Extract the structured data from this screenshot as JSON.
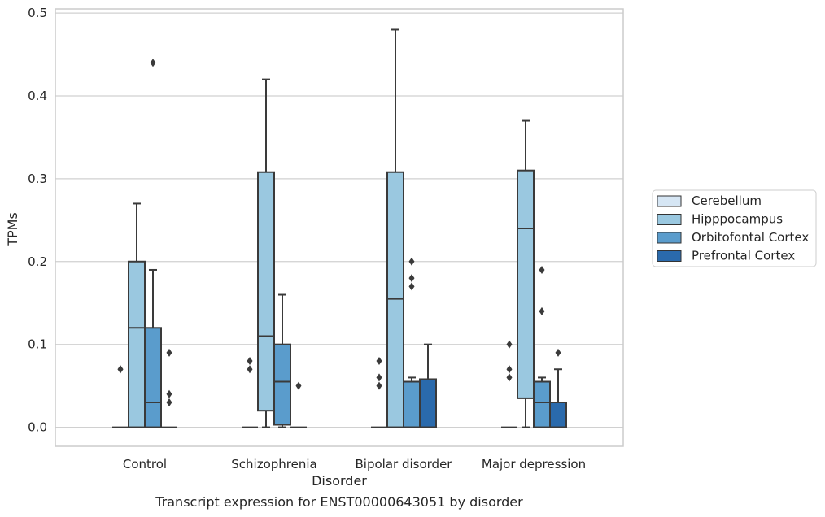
{
  "chart_data": {
    "type": "boxplot",
    "caption": "Transcript expression for ENST00000643051 by disorder",
    "xlabel": "Disorder",
    "ylabel": "TPMs",
    "ylim": [
      -0.023,
      0.505
    ],
    "yticks": [
      0.0,
      0.1,
      0.2,
      0.3,
      0.4,
      0.5
    ],
    "ytick_labels": [
      "0.0",
      "0.1",
      "0.2",
      "0.3",
      "0.4",
      "0.5"
    ],
    "grid": "horizontal",
    "legend_placement": "outside right",
    "categories": [
      "Control",
      "Schizophrenia",
      "Bipolar disorder",
      "Major depression"
    ],
    "series": [
      {
        "name": "Cerebellum",
        "color": "#d6e6f4",
        "boxes": [
          {
            "min": 0.0,
            "q1": 0.0,
            "median": 0.0,
            "q3": 0.0,
            "max": 0.0,
            "outliers": [
              0.07,
              0.07
            ]
          },
          {
            "min": 0.0,
            "q1": 0.0,
            "median": 0.0,
            "q3": 0.0,
            "max": 0.0,
            "outliers": [
              0.08,
              0.07
            ]
          },
          {
            "min": 0.0,
            "q1": 0.0,
            "median": 0.0,
            "q3": 0.0,
            "max": 0.0,
            "outliers": [
              0.08,
              0.06,
              0.05
            ]
          },
          {
            "min": 0.0,
            "q1": 0.0,
            "median": 0.0,
            "q3": 0.0,
            "max": 0.0,
            "outliers": [
              0.1,
              0.07,
              0.06
            ]
          }
        ]
      },
      {
        "name": "Hipppocampus",
        "color": "#9ac8e0",
        "boxes": [
          {
            "min": 0.0,
            "q1": 0.0,
            "median": 0.12,
            "q3": 0.2,
            "max": 0.27,
            "outliers": []
          },
          {
            "min": 0.0,
            "q1": 0.02,
            "median": 0.11,
            "q3": 0.308,
            "max": 0.42,
            "outliers": []
          },
          {
            "min": 0.0,
            "q1": 0.0,
            "median": 0.155,
            "q3": 0.308,
            "max": 0.48,
            "outliers": []
          },
          {
            "min": 0.0,
            "q1": 0.035,
            "median": 0.24,
            "q3": 0.31,
            "max": 0.37,
            "outliers": []
          }
        ]
      },
      {
        "name": "Orbitofontal Cortex",
        "color": "#5a9ccc",
        "boxes": [
          {
            "min": 0.0,
            "q1": 0.0,
            "median": 0.03,
            "q3": 0.12,
            "max": 0.19,
            "outliers": [
              0.44
            ]
          },
          {
            "min": 0.0,
            "q1": 0.003,
            "median": 0.055,
            "q3": 0.1,
            "max": 0.16,
            "outliers": []
          },
          {
            "min": 0.0,
            "q1": 0.0,
            "median": 0.0,
            "q3": 0.055,
            "max": 0.06,
            "outliers": [
              0.2,
              0.18,
              0.17
            ]
          },
          {
            "min": 0.0,
            "q1": 0.0,
            "median": 0.03,
            "q3": 0.055,
            "max": 0.06,
            "outliers": [
              0.19,
              0.14
            ]
          }
        ]
      },
      {
        "name": "Prefrontal Cortex",
        "color": "#2a6aac",
        "boxes": [
          {
            "min": 0.0,
            "q1": 0.0,
            "median": 0.0,
            "q3": 0.0,
            "max": 0.0,
            "outliers": [
              0.09,
              0.04,
              0.03
            ]
          },
          {
            "min": 0.0,
            "q1": 0.0,
            "median": 0.0,
            "q3": 0.0,
            "max": 0.0,
            "outliers": [
              0.05
            ]
          },
          {
            "min": 0.0,
            "q1": 0.0,
            "median": 0.0,
            "q3": 0.058,
            "max": 0.1,
            "outliers": []
          },
          {
            "min": 0.0,
            "q1": 0.0,
            "median": 0.0,
            "q3": 0.03,
            "max": 0.07,
            "outliers": [
              0.09
            ]
          }
        ]
      }
    ]
  }
}
